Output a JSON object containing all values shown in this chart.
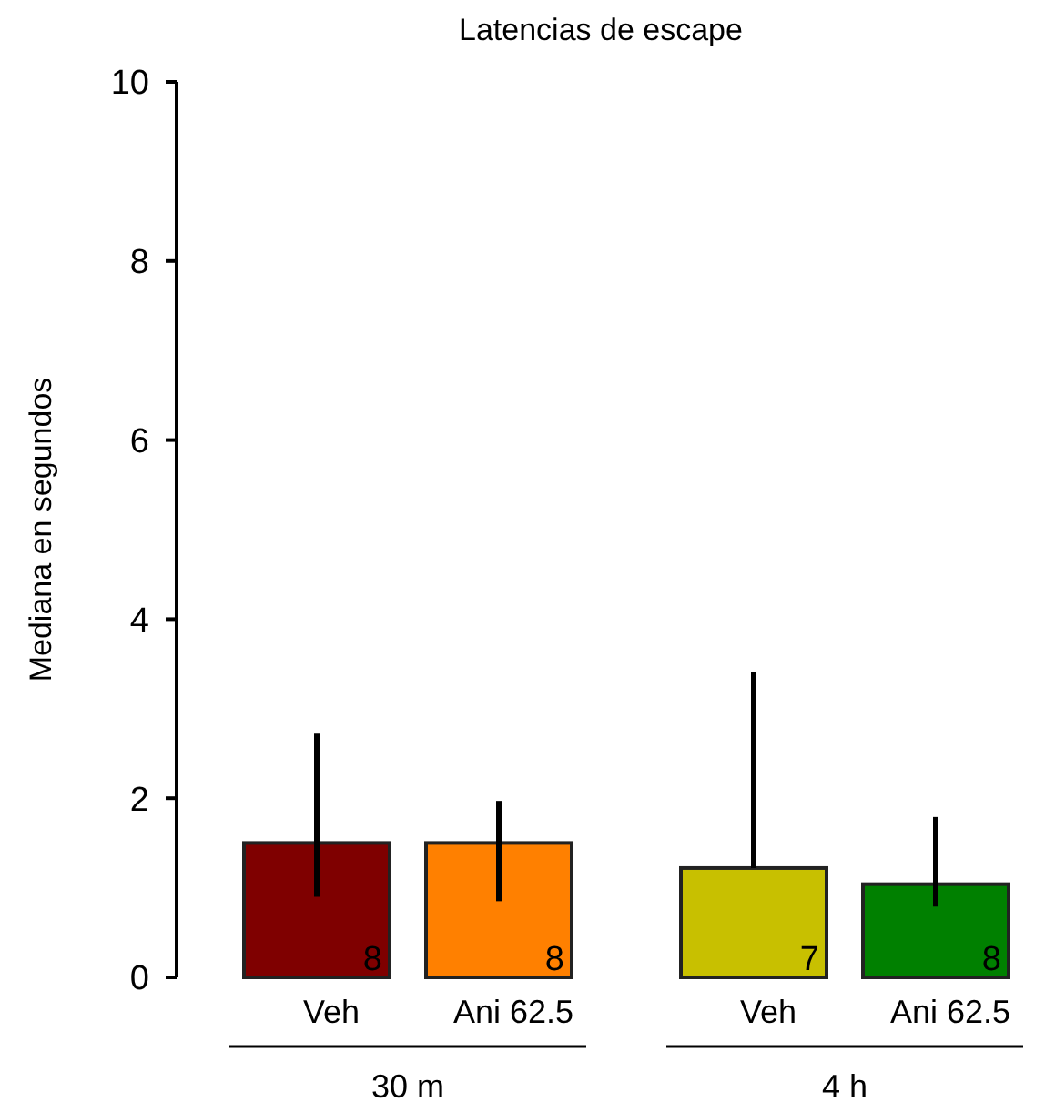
{
  "chart_data": {
    "type": "bar",
    "title": "Latencias de escape",
    "ylabel": "Mediana en segundos",
    "categories": [
      "Veh",
      "Ani 62.5",
      "Veh",
      "Ani 62.5"
    ],
    "values": [
      1.5,
      1.5,
      1.22,
      1.04
    ],
    "colors": [
      "#7f0000",
      "#ff8000",
      "#c8c000",
      "#008000"
    ],
    "errors": [
      [
        0.9,
        2.72
      ],
      [
        0.85,
        1.97
      ],
      [
        1.22,
        3.41
      ],
      [
        0.79,
        1.79
      ]
    ],
    "ylim": [
      0,
      10
    ],
    "yticks": [
      0,
      2,
      4,
      6,
      8,
      10
    ],
    "grid": false,
    "annotations": [
      "8",
      "8",
      "7",
      "8",
      "30 m",
      "4 h"
    ]
  }
}
